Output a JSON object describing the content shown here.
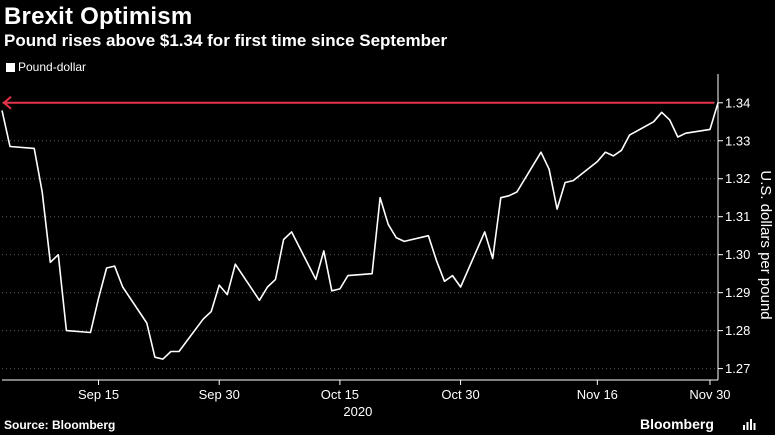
{
  "header": {
    "title": "Brexit Optimism",
    "subtitle": "Pound rises above $1.34 for first time since September"
  },
  "footer": {
    "source": "Source: Bloomberg",
    "brand": "Bloomberg"
  },
  "colors": {
    "background": "#000000",
    "series": "#ffffff",
    "reference_line": "#e8344a",
    "axis": "#ffffff"
  },
  "chart_data": {
    "type": "line",
    "title": "Brexit Optimism",
    "subtitle": "Pound rises above $1.34 for first time since September",
    "ylabel": "U.S. dollars per pound",
    "xlabel": "2020",
    "legend": {
      "entries": [
        "Pound-dollar"
      ],
      "placement": "top-left"
    },
    "ylim": [
      1.267,
      1.346
    ],
    "yticks": [
      1.27,
      1.28,
      1.29,
      1.3,
      1.31,
      1.32,
      1.33,
      1.34
    ],
    "ytick_labels": [
      "1.27",
      "1.28",
      "1.29",
      "1.30",
      "1.31",
      "1.32",
      "1.33",
      "1.34"
    ],
    "xlim": [
      "2020-09-03",
      "2020-12-01"
    ],
    "xticks": [
      "2020-09-15",
      "2020-09-30",
      "2020-10-15",
      "2020-10-30",
      "2020-11-16",
      "2020-11-30"
    ],
    "xtick_labels": [
      "Sep 15",
      "Sep 30",
      "Oct 15",
      "Oct 30",
      "Nov 16",
      "Nov 30"
    ],
    "reference_line": {
      "y": 1.34,
      "arrow": "left"
    },
    "grid": true,
    "series": [
      {
        "name": "Pound-dollar",
        "x": [
          "2020-09-03",
          "2020-09-04",
          "2020-09-07",
          "2020-09-08",
          "2020-09-09",
          "2020-09-10",
          "2020-09-11",
          "2020-09-14",
          "2020-09-15",
          "2020-09-16",
          "2020-09-17",
          "2020-09-18",
          "2020-09-21",
          "2020-09-22",
          "2020-09-23",
          "2020-09-24",
          "2020-09-25",
          "2020-09-28",
          "2020-09-29",
          "2020-09-30",
          "2020-10-01",
          "2020-10-02",
          "2020-10-05",
          "2020-10-06",
          "2020-10-07",
          "2020-10-08",
          "2020-10-09",
          "2020-10-12",
          "2020-10-13",
          "2020-10-14",
          "2020-10-15",
          "2020-10-16",
          "2020-10-19",
          "2020-10-20",
          "2020-10-21",
          "2020-10-22",
          "2020-10-23",
          "2020-10-26",
          "2020-10-27",
          "2020-10-28",
          "2020-10-29",
          "2020-10-30",
          "2020-11-02",
          "2020-11-03",
          "2020-11-04",
          "2020-11-05",
          "2020-11-06",
          "2020-11-09",
          "2020-11-10",
          "2020-11-11",
          "2020-11-12",
          "2020-11-13",
          "2020-11-16",
          "2020-11-17",
          "2020-11-18",
          "2020-11-19",
          "2020-11-20",
          "2020-11-23",
          "2020-11-24",
          "2020-11-25",
          "2020-11-26",
          "2020-11-27",
          "2020-11-30",
          "2020-12-01"
        ],
        "values": [
          1.338,
          1.3285,
          1.328,
          1.3165,
          1.298,
          1.3,
          1.28,
          1.2795,
          1.2885,
          1.2965,
          1.297,
          1.2915,
          1.282,
          1.273,
          1.2725,
          1.2745,
          1.2745,
          1.283,
          1.285,
          1.292,
          1.2895,
          1.2975,
          1.288,
          1.2915,
          1.2935,
          1.304,
          1.306,
          1.2935,
          1.301,
          1.2905,
          1.291,
          1.2945,
          1.295,
          1.315,
          1.308,
          1.3045,
          1.3035,
          1.305,
          1.2985,
          1.293,
          1.2945,
          1.2915,
          1.306,
          1.299,
          1.315,
          1.3155,
          1.3165,
          1.327,
          1.3225,
          1.312,
          1.319,
          1.3195,
          1.3245,
          1.327,
          1.326,
          1.3275,
          1.3315,
          1.335,
          1.3375,
          1.3355,
          1.331,
          1.332,
          1.333,
          1.34
        ]
      }
    ]
  }
}
